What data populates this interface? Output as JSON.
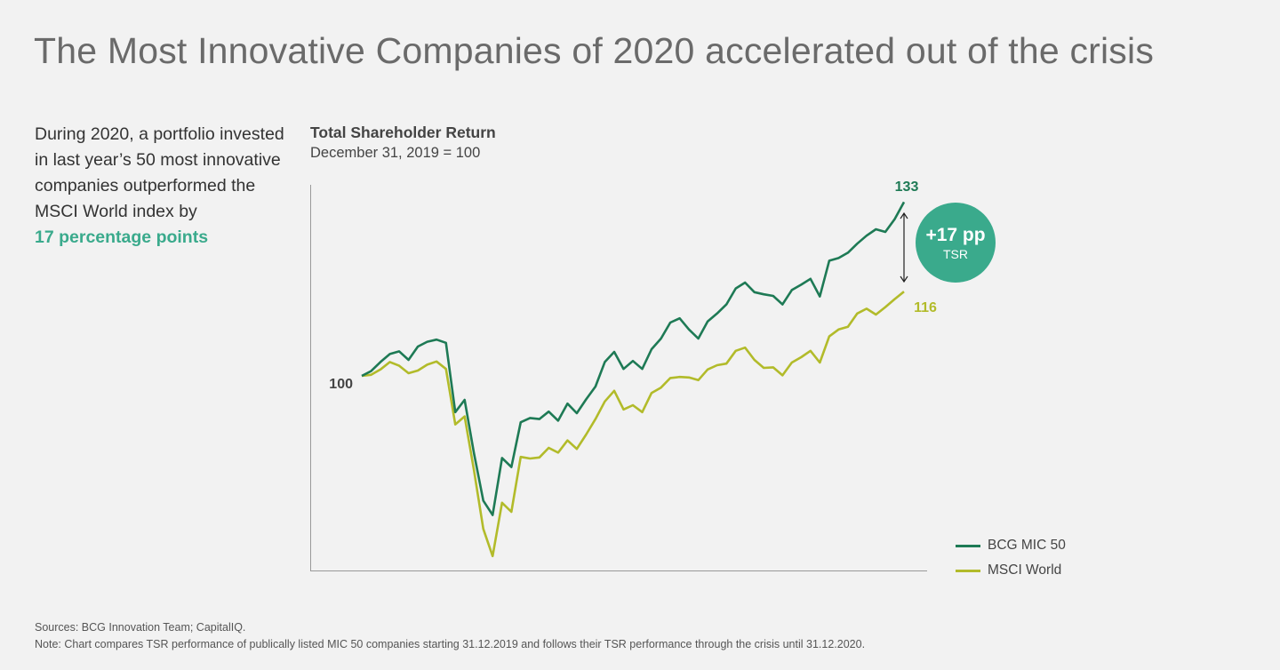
{
  "page": {
    "title": "The Most Innovative Companies of 2020 accelerated out of the crisis",
    "side_text": "During 2020, a portfolio invested in last year’s 50 most innovative companies outperformed the MSCI World index by",
    "side_highlight": "17 percentage points",
    "footer_sources": "Sources: BCG Innovation Team; CapitalIQ.",
    "footer_note": "Note: Chart compares TSR performance of publically listed MIC 50 companies starting 31.12.2019 and follows their TSR performance through the crisis until 31.12.2020."
  },
  "colors": {
    "bcg": "#1e7a55",
    "msci": "#b2bb2a",
    "accent": "#3aaa8c"
  },
  "badge": {
    "value": "+17 pp",
    "label": "TSR"
  },
  "chart_data": {
    "type": "line",
    "title": "Total Shareholder Return",
    "subtitle": "December 31, 2019 = 100",
    "xlabel": "",
    "ylabel": "",
    "ylim": [
      60,
      138
    ],
    "grid": false,
    "legend_position": "bottom-right",
    "start_label": "100",
    "series": [
      {
        "name": "BCG MIC 50",
        "end_label": "133",
        "values": [
          100,
          100.9,
          102.6,
          104.1,
          104.6,
          103.0,
          105.5,
          106.4,
          106.8,
          106.2,
          93.2,
          95.5,
          85.5,
          76.6,
          73.9,
          84.6,
          82.9,
          91.3,
          92.1,
          91.9,
          93.3,
          91.6,
          94.8,
          93.0,
          95.6,
          98.0,
          102.6,
          104.5,
          101.3,
          102.8,
          101.3,
          105.0,
          107.0,
          110.0,
          110.8,
          108.7,
          107.0,
          110.2,
          111.7,
          113.4,
          116.4,
          117.5,
          115.7,
          115.3,
          115.0,
          113.4,
          116.1,
          117.1,
          118.2,
          114.9,
          121.6,
          122.1,
          123.1,
          124.8,
          126.3,
          127.5,
          127.0,
          129.4,
          132.6
        ]
      },
      {
        "name": "MSCI World",
        "end_label": "116",
        "values": [
          100,
          100.2,
          101.2,
          102.6,
          101.9,
          100.5,
          101.0,
          102.1,
          102.7,
          101.3,
          90.9,
          92.4,
          82.3,
          71.3,
          66.2,
          76.2,
          74.5,
          84.8,
          84.5,
          84.7,
          86.5,
          85.6,
          87.9,
          86.3,
          89.0,
          91.9,
          95.2,
          97.2,
          93.7,
          94.5,
          93.2,
          96.8,
          97.8,
          99.6,
          99.8,
          99.7,
          99.2,
          101.2,
          102.0,
          102.3,
          104.7,
          105.3,
          103.0,
          101.5,
          101.6,
          100.1,
          102.5,
          103.5,
          104.7,
          102.5,
          107.4,
          108.7,
          109.2,
          111.7,
          112.6,
          111.5,
          112.9,
          114.4,
          115.8
        ]
      }
    ]
  }
}
